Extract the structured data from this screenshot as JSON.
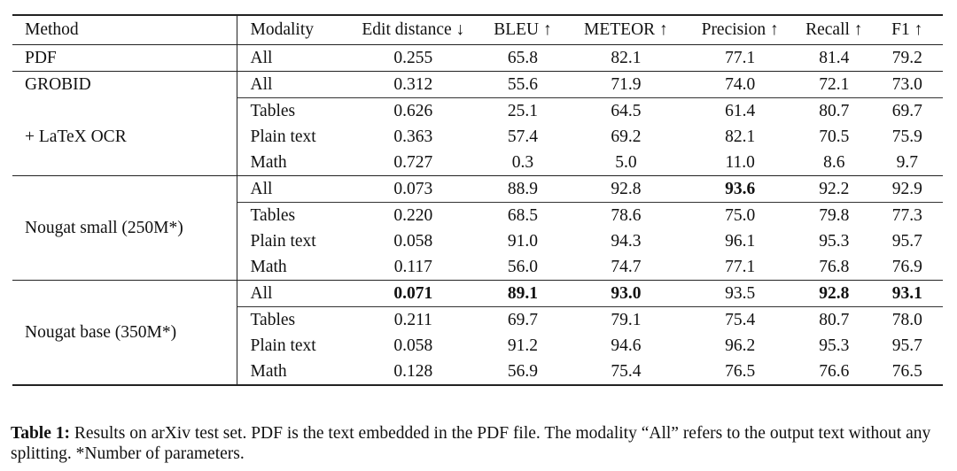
{
  "headers": [
    "Method",
    "Modality",
    "Edit distance ↓",
    "BLEU ↑",
    "METEOR ↑",
    "Precision ↑",
    "Recall ↑",
    "F1 ↑"
  ],
  "groups": [
    {
      "method": "PDF",
      "rows": [
        {
          "modality": "All",
          "values": [
            "0.255",
            "65.8",
            "82.1",
            "77.1",
            "81.4",
            "79.2"
          ]
        }
      ]
    },
    {
      "method_lines": [
        "GROBID",
        "+ LaTeX OCR"
      ],
      "rows": [
        {
          "modality": "All",
          "values": [
            "0.312",
            "55.6",
            "71.9",
            "74.0",
            "72.1",
            "73.0"
          ]
        },
        {
          "modality": "Tables",
          "values": [
            "0.626",
            "25.1",
            "64.5",
            "61.4",
            "80.7",
            "69.7"
          ]
        },
        {
          "modality": "Plain text",
          "values": [
            "0.363",
            "57.4",
            "69.2",
            "82.1",
            "70.5",
            "75.9"
          ]
        },
        {
          "modality": "Math",
          "values": [
            "0.727",
            "0.3",
            "5.0",
            "11.0",
            "8.6",
            "9.7"
          ]
        }
      ]
    },
    {
      "method": "Nougat small (250M*)",
      "rows": [
        {
          "modality": "All",
          "values": [
            "0.073",
            "88.9",
            "92.8",
            "93.6",
            "92.2",
            "92.9"
          ]
        },
        {
          "modality": "Tables",
          "values": [
            "0.220",
            "68.5",
            "78.6",
            "75.0",
            "79.8",
            "77.3"
          ]
        },
        {
          "modality": "Plain text",
          "values": [
            "0.058",
            "91.0",
            "94.3",
            "96.1",
            "95.3",
            "95.7"
          ]
        },
        {
          "modality": "Math",
          "values": [
            "0.117",
            "56.0",
            "74.7",
            "77.1",
            "76.8",
            "76.9"
          ]
        }
      ]
    },
    {
      "method": "Nougat base (350M*)",
      "rows": [
        {
          "modality": "All",
          "values": [
            "0.071",
            "89.1",
            "93.0",
            "93.5",
            "92.8",
            "93.1"
          ]
        },
        {
          "modality": "Tables",
          "values": [
            "0.211",
            "69.7",
            "79.1",
            "75.4",
            "80.7",
            "78.0"
          ]
        },
        {
          "modality": "Plain text",
          "values": [
            "0.058",
            "91.2",
            "94.6",
            "96.2",
            "95.3",
            "95.7"
          ]
        },
        {
          "modality": "Math",
          "values": [
            "0.128",
            "56.9",
            "75.4",
            "76.5",
            "76.6",
            "76.5"
          ]
        }
      ]
    }
  ],
  "caption": {
    "label": "Table 1:",
    "text": "Results on arXiv test set. PDF is the text embedded in the PDF file. The modality “All” refers to the output text without any splitting. *Number of parameters."
  }
}
